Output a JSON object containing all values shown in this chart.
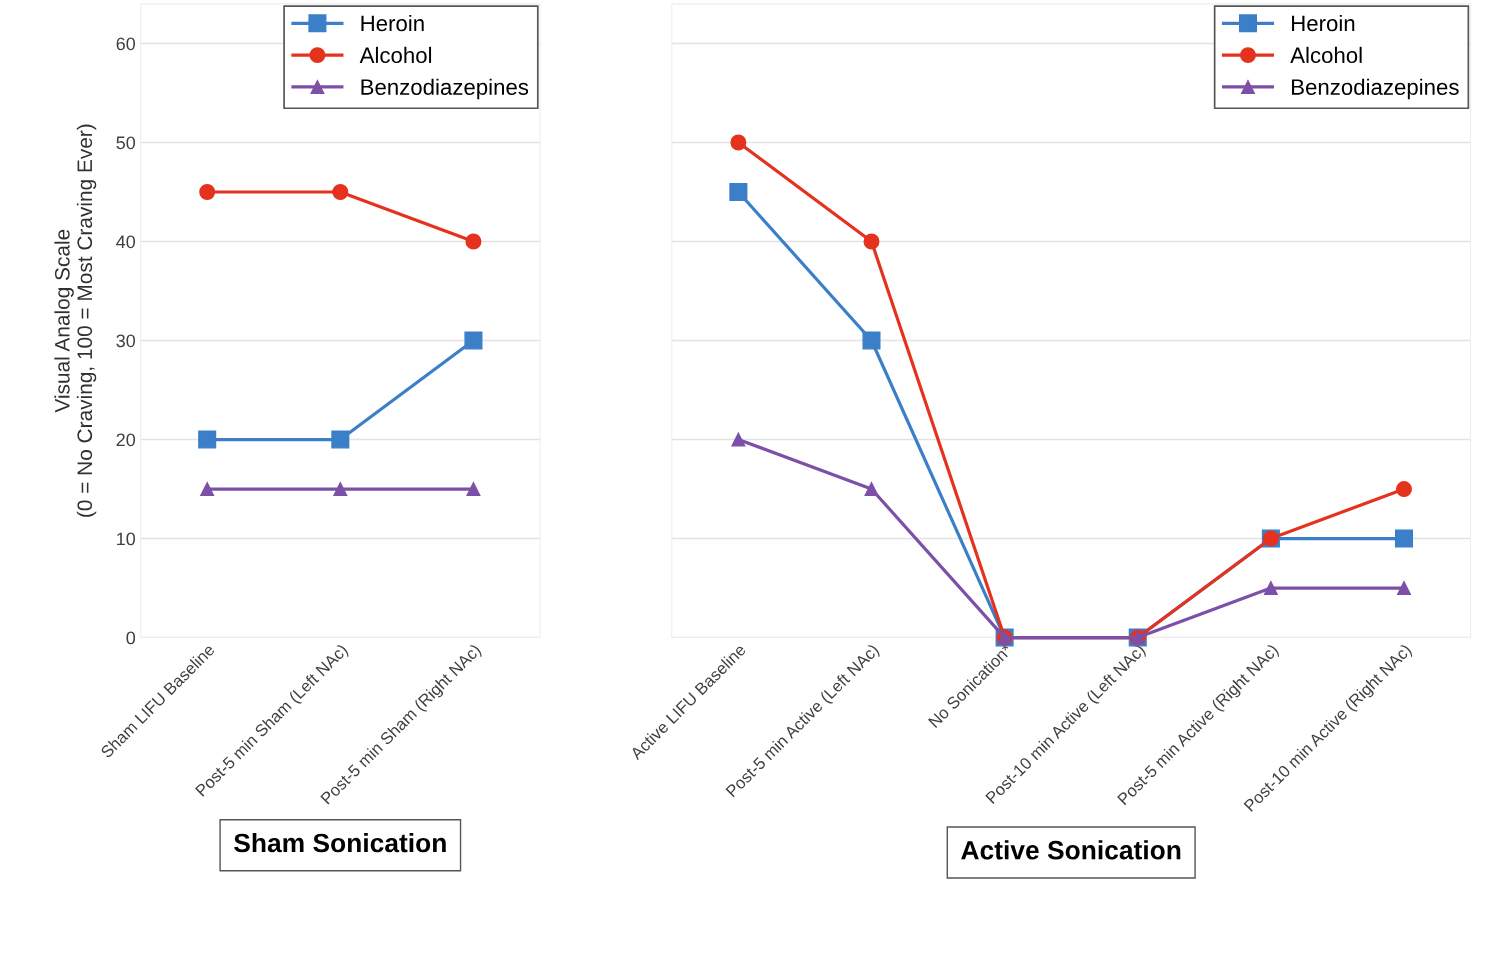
{
  "chart_data": [
    {
      "type": "line",
      "xlabel": "Sham Sonication",
      "ylabel": "Visual Analog Scale\n(0 = No Craving, 100 = Most Craving Ever)",
      "categories": [
        "Sham LIFU Baseline",
        "Post-5 min Sham (Left NAc)",
        "Post-5 min Sham (Right NAc)"
      ],
      "series": [
        {
          "name": "Heroin",
          "color": "#3b7fc8",
          "marker": "square",
          "values": [
            20,
            20,
            30
          ]
        },
        {
          "name": "Alcohol",
          "color": "#e5321f",
          "marker": "circle",
          "values": [
            45,
            45,
            40
          ]
        },
        {
          "name": "Benzodiazepines",
          "color": "#7d50a8",
          "marker": "triangle",
          "values": [
            15,
            15,
            15
          ]
        }
      ],
      "ylim": [
        0,
        64
      ],
      "yticks": [
        0,
        10,
        20,
        30,
        40,
        50,
        60
      ],
      "grid": "y",
      "legend": "top right"
    },
    {
      "type": "line",
      "xlabel": "Active Sonication",
      "categories": [
        "Active LIFU Baseline",
        "Post-5 min Active (Left NAc)",
        "No Sonication*",
        "Post-10 min Active (Left NAc)",
        "Post-5 min Active (Right NAc)",
        "Post-10 min Active (Right NAc)"
      ],
      "series": [
        {
          "name": "Heroin",
          "color": "#3b7fc8",
          "marker": "square",
          "values": [
            45,
            30,
            0,
            0,
            10,
            10
          ]
        },
        {
          "name": "Alcohol",
          "color": "#e5321f",
          "marker": "circle",
          "values": [
            50,
            40,
            0,
            0,
            10,
            15
          ]
        },
        {
          "name": "Benzodiazepines",
          "color": "#7d50a8",
          "marker": "triangle",
          "values": [
            20,
            15,
            0,
            0,
            5,
            5
          ]
        }
      ],
      "ylim": [
        0,
        64
      ],
      "yticks": [
        0,
        10,
        20,
        30,
        40,
        50,
        60
      ],
      "grid": "y",
      "legend": "top right",
      "tick_labels": "x"
    }
  ]
}
